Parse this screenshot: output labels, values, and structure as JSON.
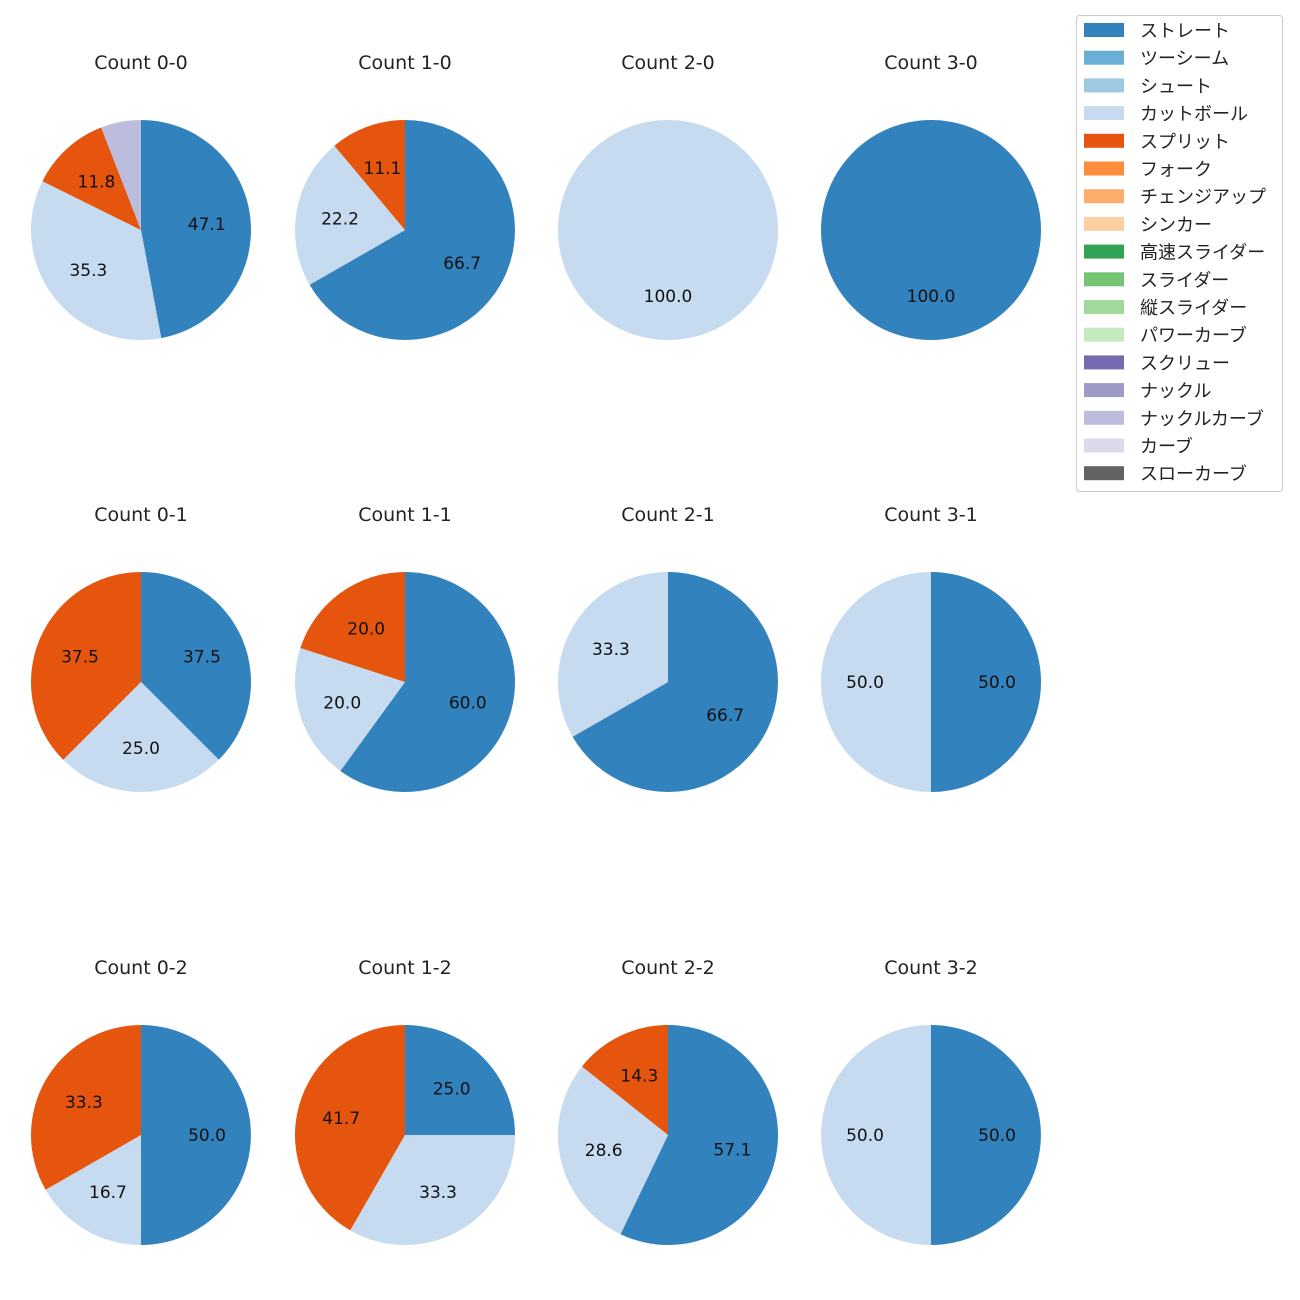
{
  "legend": {
    "items": [
      {
        "name": "ストレート",
        "color": "#3182bd"
      },
      {
        "name": "ツーシーム",
        "color": "#6baed6"
      },
      {
        "name": "シュート",
        "color": "#9ecae1"
      },
      {
        "name": "カットボール",
        "color": "#c6dbef"
      },
      {
        "name": "スプリット",
        "color": "#e6550d"
      },
      {
        "name": "フォーク",
        "color": "#fd8d3c"
      },
      {
        "name": "チェンジアップ",
        "color": "#fdae6b"
      },
      {
        "name": "シンカー",
        "color": "#fdd0a2"
      },
      {
        "name": "高速スライダー",
        "color": "#31a354"
      },
      {
        "name": "スライダー",
        "color": "#74c476"
      },
      {
        "name": "縦スライダー",
        "color": "#a1d99b"
      },
      {
        "name": "パワーカーブ",
        "color": "#c7e9c0"
      },
      {
        "name": "スクリュー",
        "color": "#756bb1"
      },
      {
        "name": "ナックル",
        "color": "#9e9ac8"
      },
      {
        "name": "ナックルカーブ",
        "color": "#bcbddc"
      },
      {
        "name": "カーブ",
        "color": "#dadaeb"
      },
      {
        "name": "スローカーブ",
        "color": "#636363"
      }
    ]
  },
  "chart_data": [
    {
      "type": "pie",
      "title": "Count 0-0",
      "slices": [
        {
          "name": "ストレート",
          "value": 47.1,
          "label": "47.1"
        },
        {
          "name": "カットボール",
          "value": 35.3,
          "label": "35.3"
        },
        {
          "name": "スプリット",
          "value": 11.8,
          "label": "11.8"
        },
        {
          "name": "ナックルカーブ",
          "value": 5.9,
          "label": ""
        }
      ]
    },
    {
      "type": "pie",
      "title": "Count 1-0",
      "slices": [
        {
          "name": "ストレート",
          "value": 66.7,
          "label": "66.7"
        },
        {
          "name": "カットボール",
          "value": 22.2,
          "label": "22.2"
        },
        {
          "name": "スプリット",
          "value": 11.1,
          "label": "11.1"
        }
      ]
    },
    {
      "type": "pie",
      "title": "Count 2-0",
      "slices": [
        {
          "name": "カットボール",
          "value": 100.0,
          "label": "100.0"
        }
      ]
    },
    {
      "type": "pie",
      "title": "Count 3-0",
      "slices": [
        {
          "name": "ストレート",
          "value": 100.0,
          "label": "100.0"
        }
      ]
    },
    {
      "type": "pie",
      "title": "Count 0-1",
      "slices": [
        {
          "name": "ストレート",
          "value": 37.5,
          "label": "37.5"
        },
        {
          "name": "カットボール",
          "value": 25.0,
          "label": "25.0"
        },
        {
          "name": "スプリット",
          "value": 37.5,
          "label": "37.5"
        }
      ]
    },
    {
      "type": "pie",
      "title": "Count 1-1",
      "slices": [
        {
          "name": "ストレート",
          "value": 60.0,
          "label": "60.0"
        },
        {
          "name": "カットボール",
          "value": 20.0,
          "label": "20.0"
        },
        {
          "name": "スプリット",
          "value": 20.0,
          "label": "20.0"
        }
      ]
    },
    {
      "type": "pie",
      "title": "Count 2-1",
      "slices": [
        {
          "name": "ストレート",
          "value": 66.7,
          "label": "66.7"
        },
        {
          "name": "カットボール",
          "value": 33.3,
          "label": "33.3"
        }
      ]
    },
    {
      "type": "pie",
      "title": "Count 3-1",
      "slices": [
        {
          "name": "ストレート",
          "value": 50.0,
          "label": "50.0"
        },
        {
          "name": "カットボール",
          "value": 50.0,
          "label": "50.0"
        }
      ]
    },
    {
      "type": "pie",
      "title": "Count 0-2",
      "slices": [
        {
          "name": "ストレート",
          "value": 50.0,
          "label": "50.0"
        },
        {
          "name": "カットボール",
          "value": 16.7,
          "label": "16.7"
        },
        {
          "name": "スプリット",
          "value": 33.3,
          "label": "33.3"
        }
      ]
    },
    {
      "type": "pie",
      "title": "Count 1-2",
      "slices": [
        {
          "name": "ストレート",
          "value": 25.0,
          "label": "25.0"
        },
        {
          "name": "カットボール",
          "value": 33.3,
          "label": "33.3"
        },
        {
          "name": "スプリット",
          "value": 41.7,
          "label": "41.7"
        }
      ]
    },
    {
      "type": "pie",
      "title": "Count 2-2",
      "slices": [
        {
          "name": "ストレート",
          "value": 57.1,
          "label": "57.1"
        },
        {
          "name": "カットボール",
          "value": 28.6,
          "label": "28.6"
        },
        {
          "name": "スプリット",
          "value": 14.3,
          "label": "14.3"
        }
      ]
    },
    {
      "type": "pie",
      "title": "Count 3-2",
      "slices": [
        {
          "name": "ストレート",
          "value": 50.0,
          "label": "50.0"
        },
        {
          "name": "カットボール",
          "value": 50.0,
          "label": "50.0"
        }
      ]
    }
  ]
}
